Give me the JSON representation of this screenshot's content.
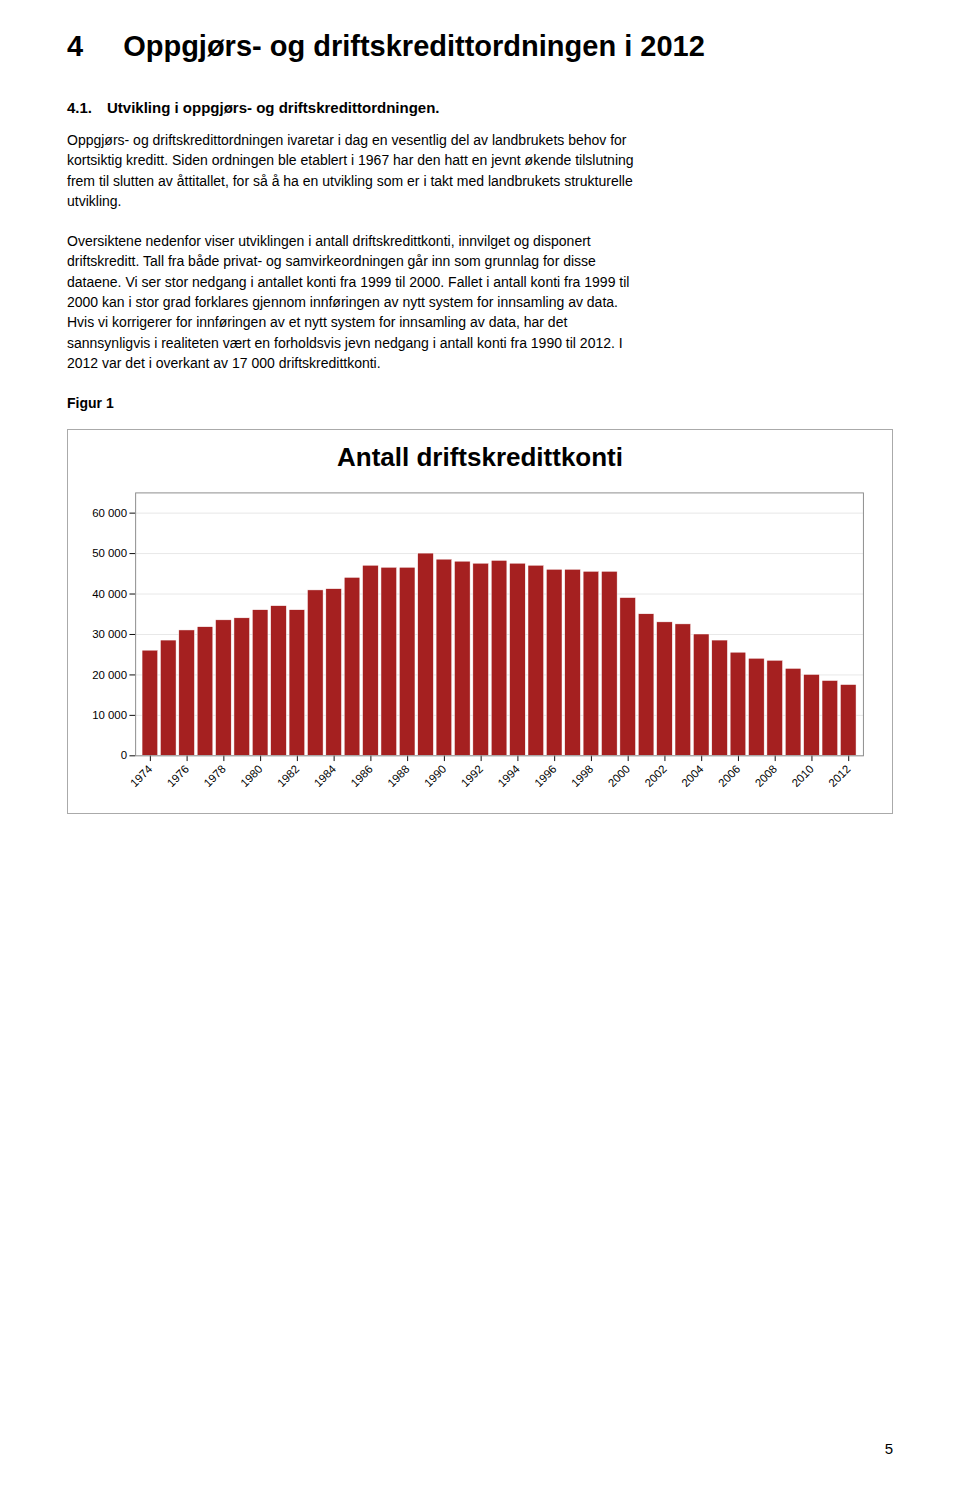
{
  "page_title_number": "4",
  "page_title_text": "Oppgjørs- og driftskredittordningen i 2012",
  "section_title": "4.1. Utvikling i oppgjørs- og driftskredittordningen.",
  "paragraphs": [
    [
      "Oppgjørs- og driftskredittordningen ivaretar i dag en vesentlig del av landbrukets behov for",
      "kortsiktig kreditt. Siden ordningen ble etablert i 1967 har den hatt en jevnt økende tilslutning",
      "frem til slutten av åttitallet, for så å ha en utvikling som er i takt med landbrukets strukturelle",
      "utvikling."
    ],
    [
      "Oversiktene nedenfor viser utviklingen i antall driftskredittkonti, innvilget og disponert",
      "driftskreditt. Tall fra både privat- og samvirkeordningen går inn som grunnlag for disse",
      "dataene. Vi ser stor nedgang i antallet konti fra 1999 til 2000. Fallet i antall konti fra 1999 til",
      "2000 kan i stor grad forklares gjennom innføringen av nytt system for innsamling av data.",
      "Hvis vi korrigerer for innføringen av et nytt system for innsamling av data, har det",
      "sannsynligvis i realiteten vært en forholdsvis jevn nedgang i antall konti fra 1990 til 2012. I",
      "2012 var det i overkant av 17 000 driftskredittkonti."
    ]
  ],
  "figure_label": "Figur 1",
  "page_number": "5",
  "chart_data": {
    "type": "bar",
    "title": "Antall driftskredittkonti",
    "x": [
      1974,
      1975,
      1976,
      1977,
      1978,
      1979,
      1980,
      1981,
      1982,
      1983,
      1984,
      1985,
      1986,
      1987,
      1988,
      1989,
      1990,
      1991,
      1992,
      1993,
      1994,
      1995,
      1996,
      1997,
      1998,
      1999,
      2000,
      2001,
      2002,
      2003,
      2004,
      2005,
      2006,
      2007,
      2008,
      2009,
      2010,
      2011,
      2012
    ],
    "values": [
      26000,
      28500,
      31000,
      31800,
      33500,
      34000,
      36000,
      37000,
      36000,
      40900,
      41200,
      44000,
      47000,
      46500,
      46500,
      50000,
      48500,
      48000,
      47500,
      48200,
      47500,
      47000,
      46000,
      46000,
      45500,
      45500,
      39000,
      35000,
      33000,
      32500,
      30000,
      28500,
      25500,
      24000,
      23500,
      21500,
      20000,
      18500,
      17500
    ],
    "color": "#A52020",
    "xlim": [
      1973.2,
      2012.8
    ],
    "xticks": [
      1974,
      1976,
      1978,
      1980,
      1982,
      1984,
      1986,
      1988,
      1990,
      1992,
      1994,
      1996,
      1998,
      2000,
      2002,
      2004,
      2006,
      2008,
      2010,
      2012
    ],
    "ylim": [
      0,
      65000
    ],
    "yticks": [
      0,
      {
        "value": 10000,
        "label": "10 000"
      },
      {
        "value": 20000,
        "label": "20 000"
      },
      {
        "value": 30000,
        "label": "30 000"
      },
      {
        "value": 40000,
        "label": "40 000"
      },
      {
        "value": 50000,
        "label": "50 000"
      },
      {
        "value": 60000,
        "label": "60 000"
      }
    ],
    "grid": true
  }
}
